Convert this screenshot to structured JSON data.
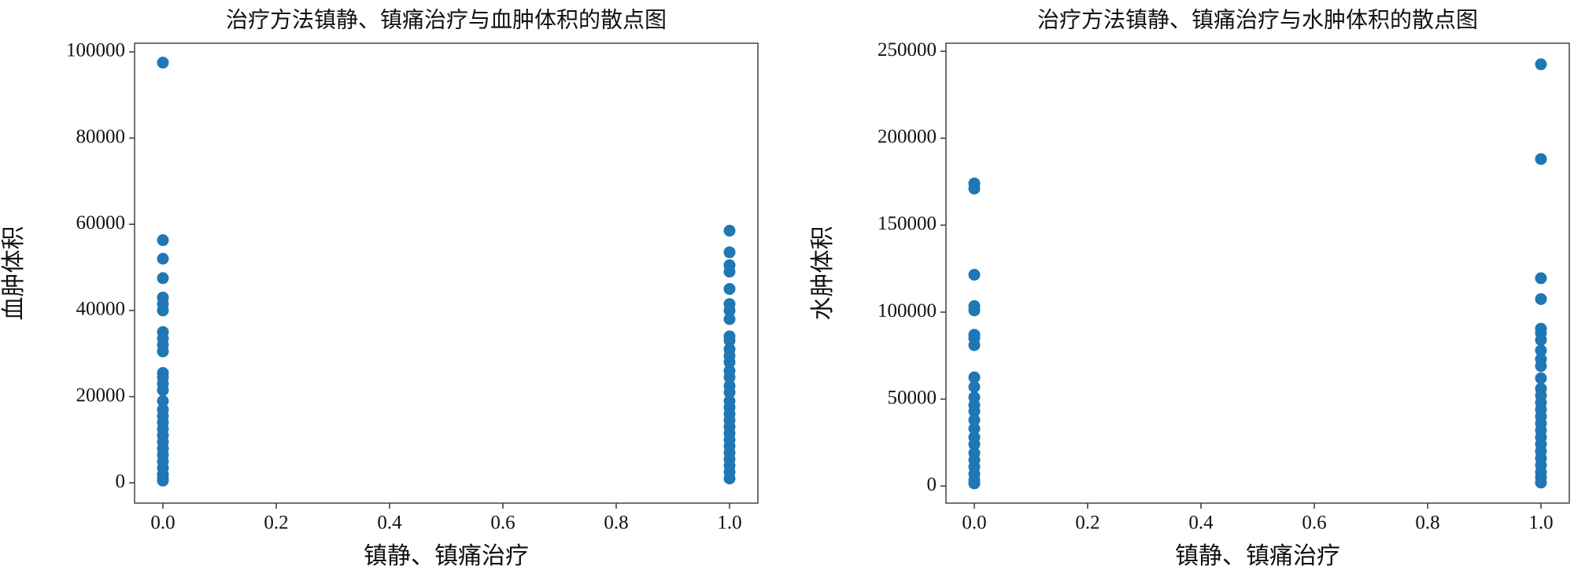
{
  "chart_data": [
    {
      "type": "scatter",
      "title": "治疗方法镇静、镇痛治疗与血肿体积的散点图",
      "xlabel": "镇静、镇痛治疗",
      "ylabel": "血肿体积",
      "color": "#1f77b4",
      "x": [
        0,
        0,
        0,
        0,
        0,
        0,
        0,
        0,
        0,
        0,
        0,
        0,
        0,
        0,
        0,
        0,
        0,
        0,
        0,
        0,
        0,
        0,
        0,
        0,
        0,
        0,
        0,
        0,
        0,
        1,
        1,
        1,
        1,
        1,
        1,
        1,
        1,
        1,
        1,
        1,
        1,
        1,
        1,
        1,
        1,
        1,
        1,
        1,
        1,
        1,
        1,
        1,
        1,
        1,
        1,
        1,
        1,
        1,
        1
      ],
      "values": [
        97500,
        56300,
        52000,
        47500,
        43000,
        41500,
        40000,
        35000,
        33500,
        32000,
        30500,
        25500,
        24500,
        23000,
        21500,
        19000,
        17000,
        15500,
        14000,
        12500,
        11000,
        9500,
        8000,
        6500,
        5000,
        3500,
        2000,
        1000,
        500,
        58500,
        53500,
        50500,
        49000,
        45000,
        41500,
        40000,
        38000,
        34000,
        33000,
        31000,
        29500,
        28000,
        26000,
        24500,
        22500,
        21000,
        19000,
        17500,
        16000,
        14500,
        13000,
        11500,
        10000,
        8500,
        7000,
        5500,
        4000,
        2500,
        1000
      ],
      "xlim": [
        -0.05,
        1.05
      ],
      "ylim": [
        -4700,
        102000
      ],
      "xticks": [
        {
          "value": 0,
          "label": "0.0"
        },
        {
          "value": 0.2,
          "label": "0.2"
        },
        {
          "value": 0.4,
          "label": "0.4"
        },
        {
          "value": 0.6,
          "label": "0.6"
        },
        {
          "value": 0.8,
          "label": "0.8"
        },
        {
          "value": 1,
          "label": "1.0"
        }
      ],
      "yticks": [
        0,
        20000,
        40000,
        60000,
        80000,
        100000
      ]
    },
    {
      "type": "scatter",
      "title": "治疗方法镇静、镇痛治疗与水肿体积的散点图",
      "xlabel": "镇静、镇痛治疗",
      "ylabel": "水肿体积",
      "color": "#1f77b4",
      "x": [
        0,
        0,
        0,
        0,
        0,
        0,
        0,
        0,
        0,
        0,
        0,
        0,
        0,
        0,
        0,
        0,
        0,
        0,
        0,
        0,
        0,
        0,
        0,
        1,
        1,
        1,
        1,
        1,
        1,
        1,
        1,
        1,
        1,
        1,
        1,
        1,
        1,
        1,
        1,
        1,
        1,
        1,
        1,
        1,
        1,
        1,
        1,
        1,
        1
      ],
      "values": [
        174000,
        171000,
        121500,
        103500,
        101000,
        87000,
        85000,
        81000,
        62500,
        57000,
        51000,
        46500,
        43000,
        38000,
        33000,
        28000,
        24000,
        19000,
        15000,
        11000,
        7000,
        3500,
        1500,
        242500,
        188000,
        119500,
        107500,
        90500,
        88000,
        84000,
        78000,
        73000,
        69000,
        62000,
        56000,
        52000,
        48000,
        44000,
        40000,
        36000,
        32000,
        28000,
        24000,
        20000,
        16000,
        12000,
        8000,
        5000,
        2000
      ],
      "xlim": [
        -0.05,
        1.05
      ],
      "ylim": [
        -9800,
        254600
      ],
      "xticks": [
        {
          "value": 0,
          "label": "0.0"
        },
        {
          "value": 0.2,
          "label": "0.2"
        },
        {
          "value": 0.4,
          "label": "0.4"
        },
        {
          "value": 0.6,
          "label": "0.6"
        },
        {
          "value": 0.8,
          "label": "0.8"
        },
        {
          "value": 1,
          "label": "1.0"
        }
      ],
      "yticks": [
        0,
        50000,
        100000,
        150000,
        200000,
        250000
      ]
    }
  ]
}
